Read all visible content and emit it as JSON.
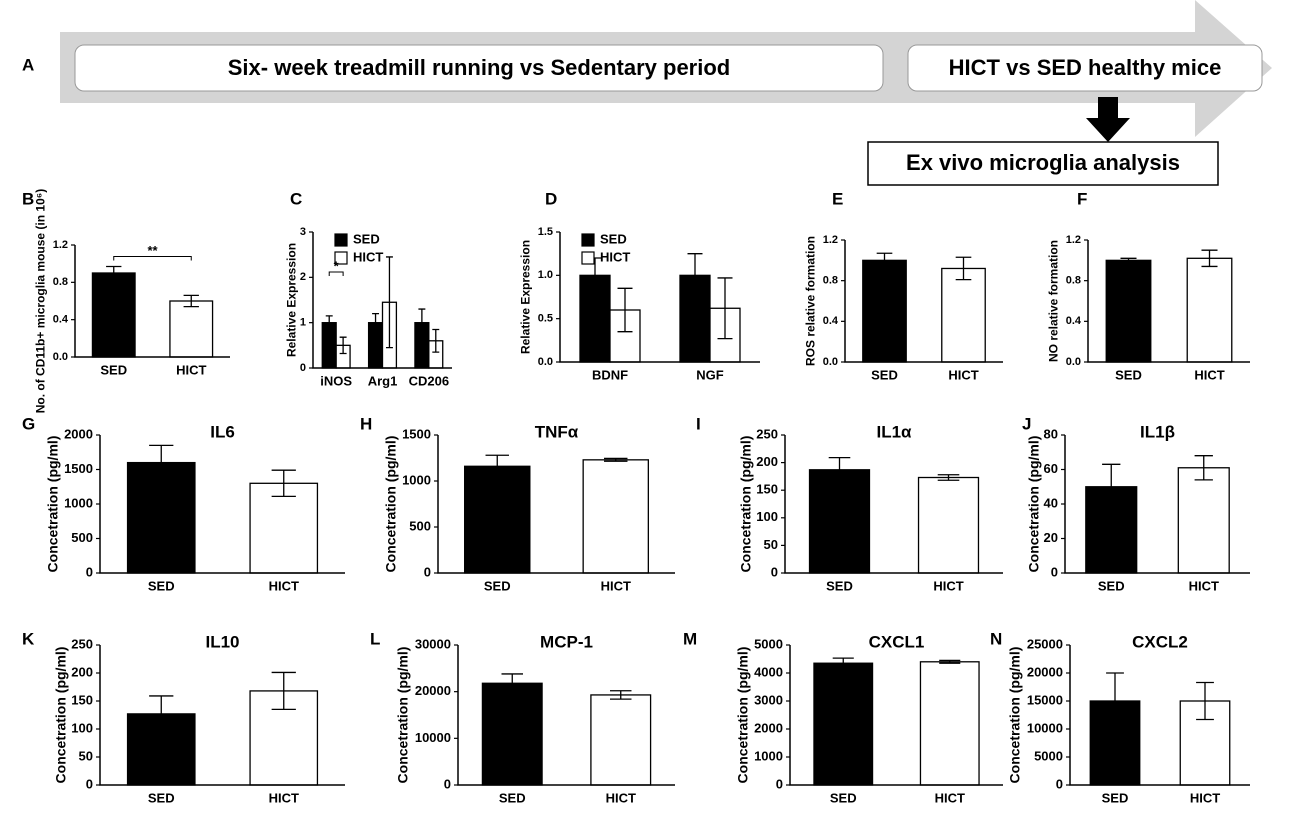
{
  "header": {
    "label": "A",
    "step1": "Six- week treadmill running vs Sedentary period",
    "step2": "HICT vs SED healthy mice",
    "step3": "Ex vivo microglia analysis"
  },
  "chart_data": [
    {
      "type": "bar",
      "panel": "B",
      "ylabel": "No. of CD11b+ microglia mouse (in 10⁶)",
      "categories": [
        "SED",
        "HICT"
      ],
      "values": [
        0.9,
        0.6
      ],
      "errors": [
        0.07,
        0.06
      ],
      "colors": [
        "#000000",
        "#ffffff"
      ],
      "ylim": [
        0,
        1.2
      ],
      "yticks": [
        {
          "value": 0,
          "label": "0.0"
        },
        0.4,
        0.8,
        1.2
      ],
      "significance": "**"
    },
    {
      "type": "grouped_bar",
      "panel": "C",
      "ylabel": "Relative Expression",
      "categories": [
        "iNOS",
        "Arg1",
        "CD206"
      ],
      "series": [
        {
          "name": "SED",
          "color": "#000000",
          "values": [
            1,
            1,
            1
          ],
          "errors": [
            0.15,
            0.2,
            0.3
          ]
        },
        {
          "name": "HICT",
          "color": "#ffffff",
          "values": [
            0.5,
            1.45,
            0.6
          ],
          "errors": [
            0.18,
            1.0,
            0.25
          ]
        }
      ],
      "ylim": [
        0,
        3
      ],
      "yticks": [
        0,
        1,
        2,
        3
      ],
      "significance": "*"
    },
    {
      "type": "grouped_bar",
      "panel": "D",
      "ylabel": "Relative Expression",
      "categories": [
        "BDNF",
        "NGF"
      ],
      "series": [
        {
          "name": "SED",
          "color": "#000000",
          "values": [
            1,
            1
          ],
          "errors": [
            0.2,
            0.25
          ]
        },
        {
          "name": "HICT",
          "color": "#ffffff",
          "values": [
            0.6,
            0.62
          ],
          "errors": [
            0.25,
            0.35
          ]
        }
      ],
      "ylim": [
        0,
        1.5
      ],
      "yticks": [
        {
          "value": 0,
          "label": "0.0"
        },
        0.5,
        {
          "value": 1,
          "label": "1.0"
        },
        1.5
      ]
    },
    {
      "type": "bar",
      "panel": "E",
      "ylabel": "ROS relative formation",
      "categories": [
        "SED",
        "HICT"
      ],
      "values": [
        1.0,
        0.92
      ],
      "errors": [
        0.07,
        0.11
      ],
      "colors": [
        "#000000",
        "#ffffff"
      ],
      "ylim": [
        0,
        1.2
      ],
      "yticks": [
        {
          "value": 0,
          "label": "0.0"
        },
        0.4,
        0.8,
        1.2
      ]
    },
    {
      "type": "bar",
      "panel": "F",
      "ylabel": "NO relative formation",
      "categories": [
        "SED",
        "HICT"
      ],
      "values": [
        1.0,
        1.02
      ],
      "errors": [
        0.02,
        0.08
      ],
      "colors": [
        "#000000",
        "#ffffff"
      ],
      "ylim": [
        0,
        1.2
      ],
      "yticks": [
        {
          "value": 0,
          "label": "0.0"
        },
        0.4,
        0.8,
        1.2
      ]
    },
    {
      "type": "bar",
      "panel": "G",
      "title": "IL6",
      "ylabel": "Concetration (pg/ml)",
      "categories": [
        "SED",
        "HICT"
      ],
      "values": [
        1600,
        1300
      ],
      "errors": [
        250,
        190
      ],
      "colors": [
        "#000000",
        "#ffffff"
      ],
      "ylim": [
        0,
        2000
      ],
      "yticks": [
        0,
        500,
        1000,
        1500,
        2000
      ]
    },
    {
      "type": "bar",
      "panel": "H",
      "title": "TNFα",
      "ylabel": "Concetration (pg/ml)",
      "categories": [
        "SED",
        "HICT"
      ],
      "values": [
        1160,
        1230
      ],
      "errors": [
        120,
        15
      ],
      "colors": [
        "#000000",
        "#ffffff"
      ],
      "ylim": [
        0,
        1500
      ],
      "yticks": [
        0,
        500,
        1000,
        1500
      ]
    },
    {
      "type": "bar",
      "panel": "I",
      "title": "IL1α",
      "ylabel": "Concetration (pg/ml)",
      "categories": [
        "SED",
        "HICT"
      ],
      "values": [
        187,
        173
      ],
      "errors": [
        22,
        5
      ],
      "colors": [
        "#000000",
        "#ffffff"
      ],
      "ylim": [
        0,
        250
      ],
      "yticks": [
        0,
        50,
        100,
        150,
        200,
        250
      ]
    },
    {
      "type": "bar",
      "panel": "J",
      "title": "IL1β",
      "ylabel": "Concetration (pg/ml)",
      "categories": [
        "SED",
        "HICT"
      ],
      "values": [
        50,
        61
      ],
      "errors": [
        13,
        7
      ],
      "colors": [
        "#000000",
        "#ffffff"
      ],
      "ylim": [
        0,
        80
      ],
      "yticks": [
        0,
        20,
        40,
        60,
        80
      ]
    },
    {
      "type": "bar",
      "panel": "K",
      "title": "IL10",
      "ylabel": "Concetration (pg/ml)",
      "categories": [
        "SED",
        "HICT"
      ],
      "values": [
        127,
        168
      ],
      "errors": [
        32,
        33
      ],
      "colors": [
        "#000000",
        "#ffffff"
      ],
      "ylim": [
        0,
        250
      ],
      "yticks": [
        0,
        50,
        100,
        150,
        200,
        250
      ]
    },
    {
      "type": "bar",
      "panel": "L",
      "title": "MCP-1",
      "ylabel": "Concetration (pg/ml)",
      "categories": [
        "SED",
        "HICT"
      ],
      "values": [
        21800,
        19300
      ],
      "errors": [
        2000,
        900
      ],
      "colors": [
        "#000000",
        "#ffffff"
      ],
      "ylim": [
        0,
        30000
      ],
      "yticks": [
        0,
        10000,
        20000,
        30000
      ]
    },
    {
      "type": "bar",
      "panel": "M",
      "title": "CXCL1",
      "ylabel": "Concetration (pg/ml)",
      "categories": [
        "SED",
        "HICT"
      ],
      "values": [
        4350,
        4400
      ],
      "errors": [
        180,
        50
      ],
      "colors": [
        "#000000",
        "#ffffff"
      ],
      "ylim": [
        0,
        5000
      ],
      "yticks": [
        0,
        1000,
        2000,
        3000,
        4000,
        5000
      ]
    },
    {
      "type": "bar",
      "panel": "N",
      "title": "CXCL2",
      "ylabel": "Concetration (pg/ml)",
      "categories": [
        "SED",
        "HICT"
      ],
      "values": [
        15000,
        15000
      ],
      "errors": [
        5000,
        3300
      ],
      "colors": [
        "#000000",
        "#ffffff"
      ],
      "ylim": [
        0,
        25000
      ],
      "yticks": [
        0,
        5000,
        10000,
        15000,
        20000,
        25000
      ]
    }
  ]
}
